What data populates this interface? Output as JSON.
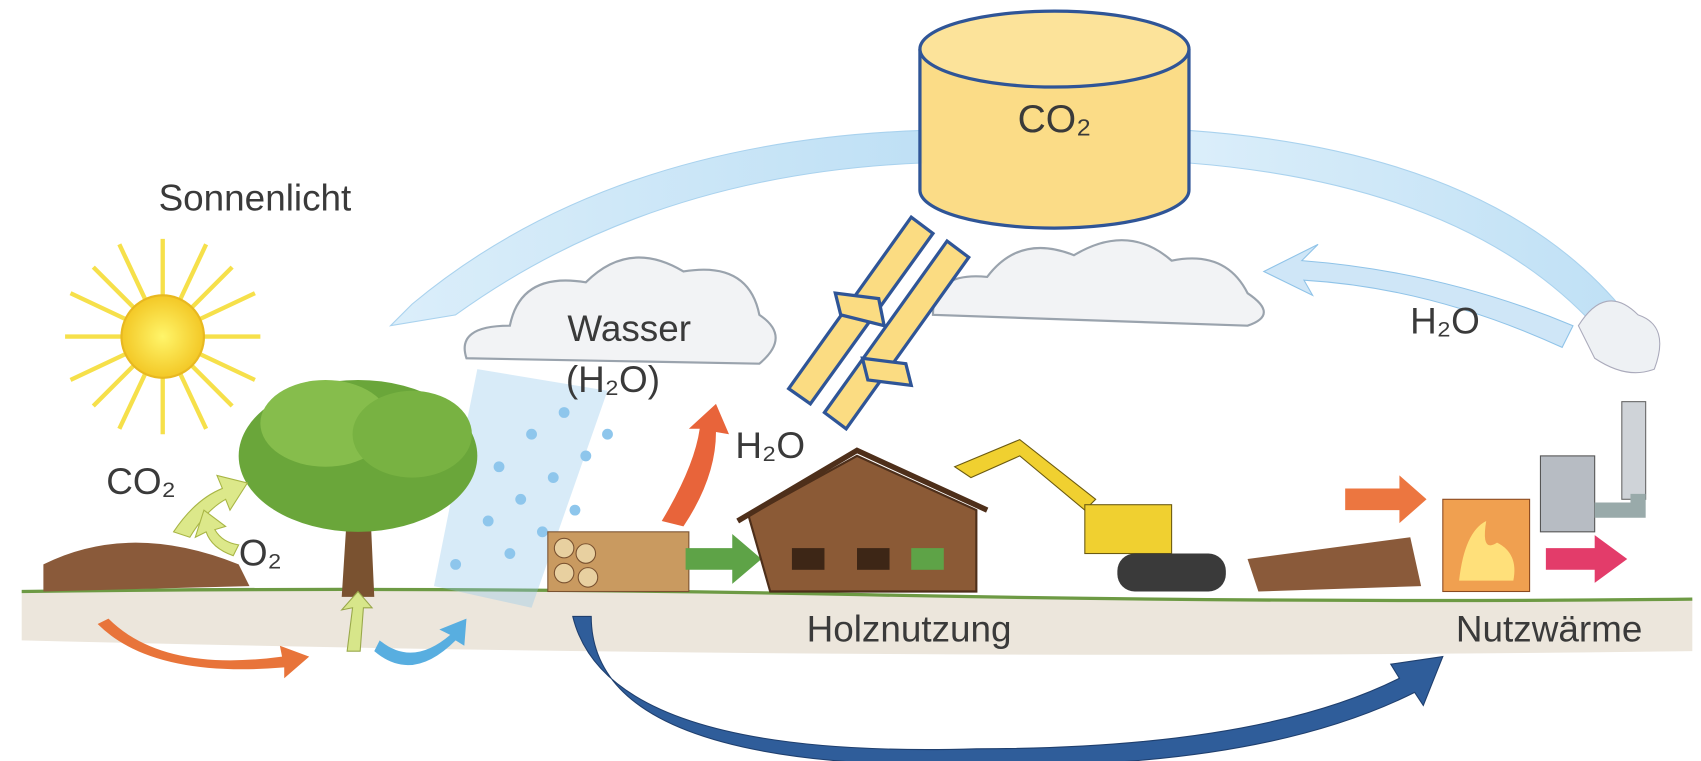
{
  "labels": {
    "sunlight": "Sonnenlicht",
    "water": "Wasser",
    "water_formula": "(H₂O)",
    "reservoir": "CO₂",
    "tree_co2": "CO₂",
    "tree_o2": "O₂",
    "evaporation": "H₂O",
    "chimney_h2o": "H₂O",
    "wood_use": "Holznutzung",
    "useful_heat": "Nutzwärme"
  }
}
